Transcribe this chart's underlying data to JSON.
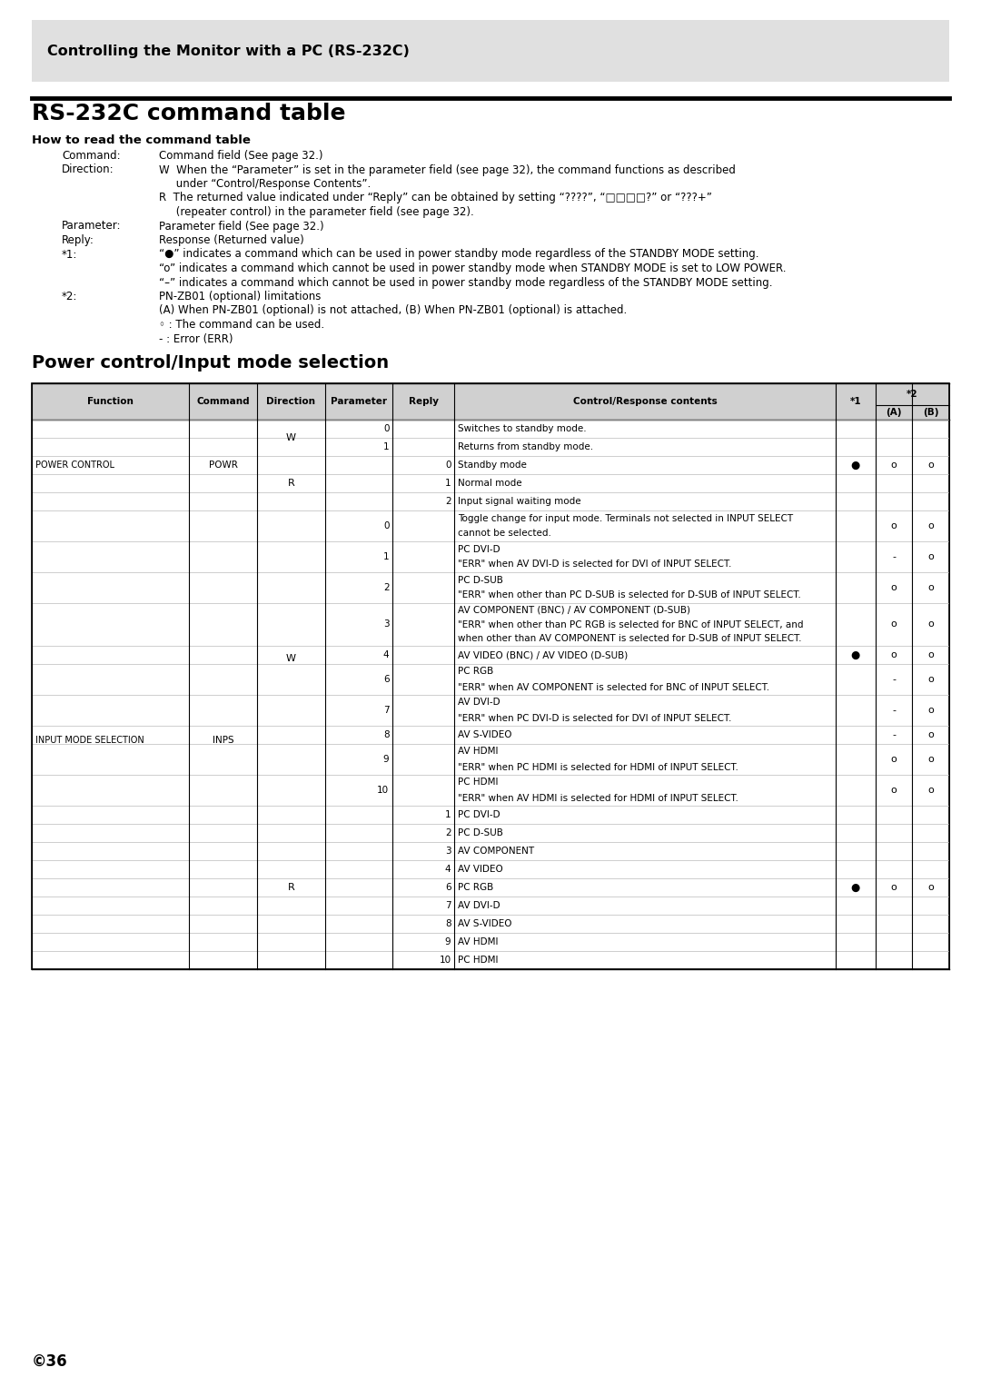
{
  "header_box_title": "Controlling the Monitor with a PC (RS-232C)",
  "section_title": "RS-232C command table",
  "subsection_title": "How to read the command table",
  "power_section_title": "Power control/Input mode selection",
  "page_number": "©36",
  "bg_color": "#ffffff",
  "header_bg": "#e0e0e0",
  "table_header_bg": "#d0d0d0",
  "border_color": "#000000",
  "light_border": "#bbbbbb",
  "table_rows": [
    {
      "func": "POWER CONTROL",
      "cmd": "POWR",
      "dir": "W",
      "param": "0",
      "reply": "",
      "content": "Switches to standby mode.",
      "s1": "",
      "s2a": "",
      "s2b": ""
    },
    {
      "func": "",
      "cmd": "",
      "dir": "",
      "param": "1",
      "reply": "",
      "content": "Returns from standby mode.",
      "s1": "",
      "s2a": "",
      "s2b": ""
    },
    {
      "func": "",
      "cmd": "",
      "dir": "R",
      "param": "",
      "reply": "0",
      "content": "Standby mode",
      "s1": "●",
      "s2a": "o",
      "s2b": "o"
    },
    {
      "func": "",
      "cmd": "",
      "dir": "",
      "param": "",
      "reply": "1",
      "content": "Normal mode",
      "s1": "",
      "s2a": "",
      "s2b": ""
    },
    {
      "func": "",
      "cmd": "",
      "dir": "",
      "param": "",
      "reply": "2",
      "content": "Input signal waiting mode",
      "s1": "",
      "s2a": "",
      "s2b": ""
    },
    {
      "func": "INPUT MODE SELECTION",
      "cmd": "INPS",
      "dir": "W",
      "param": "0",
      "reply": "",
      "content": "Toggle change for input mode. Terminals not selected in INPUT SELECT\ncannot be selected.",
      "s1": "",
      "s2a": "o",
      "s2b": "o"
    },
    {
      "func": "",
      "cmd": "",
      "dir": "",
      "param": "1",
      "reply": "",
      "content": "PC DVI-D\n\"ERR\" when AV DVI-D is selected for DVI of INPUT SELECT.",
      "s1": "",
      "s2a": "-",
      "s2b": "o"
    },
    {
      "func": "",
      "cmd": "",
      "dir": "",
      "param": "2",
      "reply": "",
      "content": "PC D-SUB\n\"ERR\" when other than PC D-SUB is selected for D-SUB of INPUT SELECT.",
      "s1": "",
      "s2a": "o",
      "s2b": "o"
    },
    {
      "func": "",
      "cmd": "",
      "dir": "",
      "param": "3",
      "reply": "",
      "content": "AV COMPONENT (BNC) / AV COMPONENT (D-SUB)\n\"ERR\" when other than PC RGB is selected for BNC of INPUT SELECT, and\nwhen other than AV COMPONENT is selected for D-SUB of INPUT SELECT.",
      "s1": "",
      "s2a": "o",
      "s2b": "o"
    },
    {
      "func": "",
      "cmd": "",
      "dir": "",
      "param": "4",
      "reply": "",
      "content": "AV VIDEO (BNC) / AV VIDEO (D-SUB)",
      "s1": "●",
      "s2a": "o",
      "s2b": "o"
    },
    {
      "func": "",
      "cmd": "",
      "dir": "",
      "param": "6",
      "reply": "",
      "content": "PC RGB\n\"ERR\" when AV COMPONENT is selected for BNC of INPUT SELECT.",
      "s1": "",
      "s2a": "-",
      "s2b": "o"
    },
    {
      "func": "",
      "cmd": "",
      "dir": "",
      "param": "7",
      "reply": "",
      "content": "AV DVI-D\n\"ERR\" when PC DVI-D is selected for DVI of INPUT SELECT.",
      "s1": "",
      "s2a": "-",
      "s2b": "o"
    },
    {
      "func": "",
      "cmd": "",
      "dir": "",
      "param": "8",
      "reply": "",
      "content": "AV S-VIDEO",
      "s1": "",
      "s2a": "-",
      "s2b": "o"
    },
    {
      "func": "",
      "cmd": "",
      "dir": "",
      "param": "9",
      "reply": "",
      "content": "AV HDMI\n\"ERR\" when PC HDMI is selected for HDMI of INPUT SELECT.",
      "s1": "",
      "s2a": "o",
      "s2b": "o"
    },
    {
      "func": "",
      "cmd": "",
      "dir": "",
      "param": "10",
      "reply": "",
      "content": "PC HDMI\n\"ERR\" when AV HDMI is selected for HDMI of INPUT SELECT.",
      "s1": "",
      "s2a": "o",
      "s2b": "o"
    },
    {
      "func": "",
      "cmd": "",
      "dir": "R",
      "param": "",
      "reply": "1",
      "content": "PC DVI-D",
      "s1": "",
      "s2a": "",
      "s2b": ""
    },
    {
      "func": "",
      "cmd": "",
      "dir": "",
      "param": "",
      "reply": "2",
      "content": "PC D-SUB",
      "s1": "",
      "s2a": "",
      "s2b": ""
    },
    {
      "func": "",
      "cmd": "",
      "dir": "",
      "param": "",
      "reply": "3",
      "content": "AV COMPONENT",
      "s1": "",
      "s2a": "",
      "s2b": ""
    },
    {
      "func": "",
      "cmd": "",
      "dir": "",
      "param": "",
      "reply": "4",
      "content": "AV VIDEO",
      "s1": "",
      "s2a": "",
      "s2b": ""
    },
    {
      "func": "",
      "cmd": "",
      "dir": "",
      "param": "",
      "reply": "6",
      "content": "PC RGB",
      "s1": "●",
      "s2a": "o",
      "s2b": "o"
    },
    {
      "func": "",
      "cmd": "",
      "dir": "",
      "param": "",
      "reply": "7",
      "content": "AV DVI-D",
      "s1": "",
      "s2a": "",
      "s2b": ""
    },
    {
      "func": "",
      "cmd": "",
      "dir": "",
      "param": "",
      "reply": "8",
      "content": "AV S-VIDEO",
      "s1": "",
      "s2a": "",
      "s2b": ""
    },
    {
      "func": "",
      "cmd": "",
      "dir": "",
      "param": "",
      "reply": "9",
      "content": "AV HDMI",
      "s1": "",
      "s2a": "",
      "s2b": ""
    },
    {
      "func": "",
      "cmd": "",
      "dir": "",
      "param": "",
      "reply": "10",
      "content": "PC HDMI",
      "s1": "",
      "s2a": "",
      "s2b": ""
    }
  ]
}
